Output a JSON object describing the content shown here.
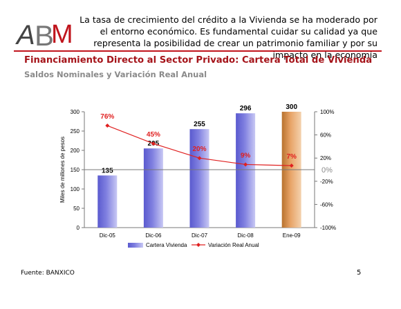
{
  "slide": {
    "logo_text": "ABM",
    "header_text": "La tasa de crecimiento del crédito a la Vivienda se ha moderado por el entorno económico. Es fundamental cuidar su calidad ya que representa la posibilidad de crear un patrimonio familiar y por su impacto en la economía",
    "title": "Financiamiento Directo al Sector Privado: Cartera Total de Vivienda",
    "subtitle": "Saldos Nominales y Variación Real Anual",
    "source": "Fuente:  BANXICO",
    "page_number": "5"
  },
  "colors": {
    "accent_red": "#c0141c",
    "bar_blue": "#8080e0",
    "bar_highlight": "#e8a468",
    "line_red": "#e02020"
  },
  "chart_data": {
    "type": "bar",
    "categories": [
      "Dic-05",
      "Dic-06",
      "Dic-07",
      "Dic-08",
      "Ene-09"
    ],
    "series": [
      {
        "name": "Cartera Vivienda",
        "type": "bar",
        "axis": "left",
        "values": [
          135,
          205,
          255,
          296,
          300
        ],
        "labels": [
          "135",
          "205",
          "255",
          "296",
          "300"
        ]
      },
      {
        "name": "Variación Real Anual",
        "type": "line",
        "axis": "right",
        "values": [
          76,
          45,
          20,
          9,
          7
        ],
        "labels": [
          "76%",
          "45%",
          "20%",
          "9%",
          "7%"
        ]
      }
    ],
    "ylabel": "Miles de millones de pesos",
    "ylim": [
      0,
      300
    ],
    "yticks": [
      "0",
      "50",
      "100",
      "150",
      "200",
      "250",
      "300"
    ],
    "y2lim": [
      -100,
      100
    ],
    "y2ticks": [
      "-100%",
      "-60%",
      "-20%",
      "20%",
      "60%",
      "100%"
    ],
    "reference_line": {
      "value": 0,
      "axis": "right",
      "label": "0%"
    },
    "legend_position": "bottom",
    "grid": false
  }
}
